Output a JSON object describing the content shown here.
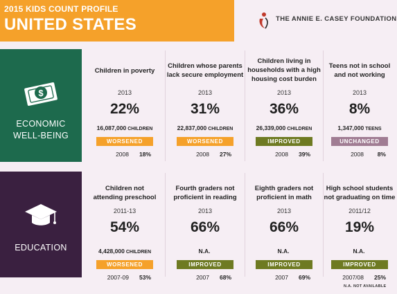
{
  "header": {
    "profile_line": "2015 KIDS COUNT PROFILE",
    "country": "UNITED STATES",
    "organization": "THE ANNIE E. CASEY FOUNDATION"
  },
  "colors": {
    "header_orange": "#f5a12a",
    "economic_green": "#1d6a4d",
    "education_purple": "#3a2040",
    "worsened": "#f5a12a",
    "improved": "#6e7a22",
    "unchanged": "#a07c93"
  },
  "economic": {
    "label_line1": "ECONOMIC",
    "label_line2": "WELL-BEING",
    "icon": "money-bill-icon",
    "cards": [
      {
        "title1": "Children in poverty",
        "title2": "",
        "title3": "",
        "year": "2013",
        "percent": "22%",
        "count": "16,087,000",
        "unit": "CHILDREN",
        "trend": "WORSENED",
        "base_year": "2008",
        "base_value": "18%"
      },
      {
        "title1": "Children whose parents",
        "title2": "lack secure employment",
        "title3": "",
        "year": "2013",
        "percent": "31%",
        "count": "22,837,000",
        "unit": "CHILDREN",
        "trend": "WORSENED",
        "base_year": "2008",
        "base_value": "27%"
      },
      {
        "title1": "Children living in",
        "title2": "households with a high",
        "title3": "housing cost burden",
        "year": "2013",
        "percent": "36%",
        "count": "26,339,000",
        "unit": "CHILDREN",
        "trend": "IMPROVED",
        "base_year": "2008",
        "base_value": "39%"
      },
      {
        "title1": "Teens not in school",
        "title2": "and not working",
        "title3": "",
        "year": "2013",
        "percent": "8%",
        "count": "1,347,000",
        "unit": "TEENS",
        "trend": "UNCHANGED",
        "base_year": "2008",
        "base_value": "8%"
      }
    ]
  },
  "education": {
    "label": "EDUCATION",
    "icon": "graduation-cap-icon",
    "cards": [
      {
        "title1": "Children not",
        "title2": "attending preschool",
        "year": "2011-13",
        "percent": "54%",
        "count": "4,428,000",
        "unit": "CHILDREN",
        "trend": "WORSENED",
        "base_year": "2007-09",
        "base_value": "53%"
      },
      {
        "title1": "Fourth graders not",
        "title2": "proficient in reading",
        "year": "2013",
        "percent": "66%",
        "count": "N.A.",
        "unit": "",
        "trend": "IMPROVED",
        "base_year": "2007",
        "base_value": "68%"
      },
      {
        "title1": "Eighth graders not",
        "title2": "proficient in math",
        "year": "2013",
        "percent": "66%",
        "count": "N.A.",
        "unit": "",
        "trend": "IMPROVED",
        "base_year": "2007",
        "base_value": "69%"
      },
      {
        "title1": "High school students",
        "title2": "not graduating on time",
        "year": "2011/12",
        "percent": "19%",
        "count": "N.A.",
        "unit": "",
        "trend": "IMPROVED",
        "base_year": "2007/08",
        "base_value": "25%"
      }
    ]
  },
  "footnote": "N.A. NOT AVAILABLE"
}
